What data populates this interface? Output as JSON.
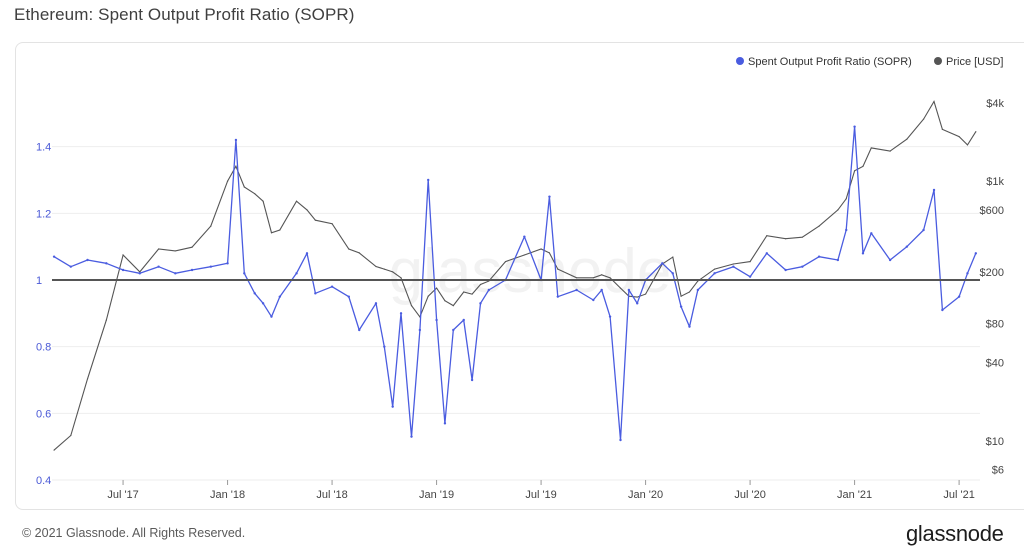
{
  "header": {
    "title": "Ethereum: Spent Output Profit Ratio (SOPR)"
  },
  "footer": {
    "copyright": "© 2021 Glassnode. All Rights Reserved.",
    "brand": "glassnode"
  },
  "watermark": "glassnode",
  "colors": {
    "sopr": "#4a5ce0",
    "price": "#555555",
    "baseline": "#555555",
    "grid": "#eeeeee"
  },
  "chart_data": {
    "type": "line",
    "title": "Ethereum: Spent Output Profit Ratio (SOPR)",
    "legend": [
      {
        "name": "Spent Output Profit Ratio (SOPR)",
        "color": "#4a5ce0"
      },
      {
        "name": "Price [USD]",
        "color": "#555555"
      }
    ],
    "x_ticks": [
      "Jul '17",
      "Jan '18",
      "Jul '18",
      "Jan '19",
      "Jul '19",
      "Jan '20",
      "Jul '20",
      "Jan '21",
      "Jul '21"
    ],
    "x_range": [
      "2017-03",
      "2021-07"
    ],
    "y_left": {
      "label": "SOPR",
      "ticks": [
        "1.4",
        "1.2",
        "1",
        "0.8",
        "0.6",
        "0.4"
      ],
      "tick_values": [
        1.4,
        1.2,
        1.0,
        0.8,
        0.6,
        0.4
      ],
      "range": [
        0.4,
        1.6
      ],
      "baseline": 1.0
    },
    "y_right": {
      "label": "Price [USD]",
      "scale": "log",
      "ticks": [
        "$4k",
        "$1k",
        "$600",
        "$200",
        "$80",
        "$40",
        "$10",
        "$6"
      ],
      "tick_values": [
        4000,
        1000,
        600,
        200,
        80,
        40,
        10,
        6
      ],
      "range": [
        5,
        6000
      ]
    },
    "series": [
      {
        "name": "Spent Output Profit Ratio (SOPR)",
        "axis": "left",
        "points": [
          [
            2017.17,
            1.07
          ],
          [
            2017.25,
            1.04
          ],
          [
            2017.33,
            1.06
          ],
          [
            2017.42,
            1.05
          ],
          [
            2017.5,
            1.03
          ],
          [
            2017.58,
            1.02
          ],
          [
            2017.67,
            1.04
          ],
          [
            2017.75,
            1.02
          ],
          [
            2017.83,
            1.03
          ],
          [
            2017.92,
            1.04
          ],
          [
            2018.0,
            1.05
          ],
          [
            2018.04,
            1.42
          ],
          [
            2018.08,
            1.02
          ],
          [
            2018.13,
            0.96
          ],
          [
            2018.17,
            0.93
          ],
          [
            2018.21,
            0.89
          ],
          [
            2018.25,
            0.95
          ],
          [
            2018.33,
            1.02
          ],
          [
            2018.38,
            1.08
          ],
          [
            2018.42,
            0.96
          ],
          [
            2018.5,
            0.98
          ],
          [
            2018.58,
            0.95
          ],
          [
            2018.63,
            0.85
          ],
          [
            2018.71,
            0.93
          ],
          [
            2018.75,
            0.8
          ],
          [
            2018.79,
            0.62
          ],
          [
            2018.83,
            0.9
          ],
          [
            2018.88,
            0.53
          ],
          [
            2018.92,
            0.85
          ],
          [
            2018.96,
            1.3
          ],
          [
            2019.0,
            0.88
          ],
          [
            2019.04,
            0.57
          ],
          [
            2019.08,
            0.85
          ],
          [
            2019.13,
            0.88
          ],
          [
            2019.17,
            0.7
          ],
          [
            2019.21,
            0.93
          ],
          [
            2019.25,
            0.97
          ],
          [
            2019.33,
            1.0
          ],
          [
            2019.42,
            1.13
          ],
          [
            2019.5,
            1.0
          ],
          [
            2019.54,
            1.25
          ],
          [
            2019.58,
            0.95
          ],
          [
            2019.67,
            0.97
          ],
          [
            2019.75,
            0.94
          ],
          [
            2019.79,
            0.97
          ],
          [
            2019.83,
            0.89
          ],
          [
            2019.88,
            0.52
          ],
          [
            2019.92,
            0.97
          ],
          [
            2019.96,
            0.93
          ],
          [
            2020.0,
            1.0
          ],
          [
            2020.08,
            1.05
          ],
          [
            2020.13,
            1.02
          ],
          [
            2020.17,
            0.92
          ],
          [
            2020.21,
            0.86
          ],
          [
            2020.25,
            0.97
          ],
          [
            2020.33,
            1.02
          ],
          [
            2020.42,
            1.04
          ],
          [
            2020.5,
            1.01
          ],
          [
            2020.58,
            1.08
          ],
          [
            2020.67,
            1.03
          ],
          [
            2020.75,
            1.04
          ],
          [
            2020.83,
            1.07
          ],
          [
            2020.92,
            1.06
          ],
          [
            2020.96,
            1.15
          ],
          [
            2021.0,
            1.46
          ],
          [
            2021.04,
            1.08
          ],
          [
            2021.08,
            1.14
          ],
          [
            2021.17,
            1.06
          ],
          [
            2021.25,
            1.1
          ],
          [
            2021.33,
            1.15
          ],
          [
            2021.38,
            1.27
          ],
          [
            2021.42,
            0.91
          ],
          [
            2021.5,
            0.95
          ],
          [
            2021.54,
            1.02
          ],
          [
            2021.58,
            1.08
          ]
        ]
      },
      {
        "name": "Price [USD]",
        "axis": "right",
        "points": [
          [
            2017.17,
            8.5
          ],
          [
            2017.25,
            11
          ],
          [
            2017.33,
            30
          ],
          [
            2017.42,
            85
          ],
          [
            2017.5,
            270
          ],
          [
            2017.58,
            200
          ],
          [
            2017.67,
            300
          ],
          [
            2017.75,
            290
          ],
          [
            2017.83,
            310
          ],
          [
            2017.92,
            450
          ],
          [
            2018.0,
            1000
          ],
          [
            2018.04,
            1300
          ],
          [
            2018.08,
            900
          ],
          [
            2018.13,
            800
          ],
          [
            2018.17,
            700
          ],
          [
            2018.21,
            400
          ],
          [
            2018.25,
            420
          ],
          [
            2018.33,
            700
          ],
          [
            2018.38,
            600
          ],
          [
            2018.42,
            500
          ],
          [
            2018.5,
            470
          ],
          [
            2018.58,
            300
          ],
          [
            2018.63,
            280
          ],
          [
            2018.71,
            220
          ],
          [
            2018.75,
            210
          ],
          [
            2018.79,
            200
          ],
          [
            2018.83,
            180
          ],
          [
            2018.88,
            110
          ],
          [
            2018.92,
            90
          ],
          [
            2018.96,
            130
          ],
          [
            2019.0,
            150
          ],
          [
            2019.04,
            120
          ],
          [
            2019.08,
            110
          ],
          [
            2019.13,
            140
          ],
          [
            2019.17,
            135
          ],
          [
            2019.21,
            160
          ],
          [
            2019.25,
            170
          ],
          [
            2019.33,
            240
          ],
          [
            2019.42,
            270
          ],
          [
            2019.5,
            300
          ],
          [
            2019.54,
            280
          ],
          [
            2019.58,
            210
          ],
          [
            2019.67,
            180
          ],
          [
            2019.75,
            180
          ],
          [
            2019.79,
            190
          ],
          [
            2019.83,
            180
          ],
          [
            2019.88,
            150
          ],
          [
            2019.92,
            130
          ],
          [
            2019.96,
            128
          ],
          [
            2020.0,
            135
          ],
          [
            2020.08,
            230
          ],
          [
            2020.13,
            260
          ],
          [
            2020.17,
            130
          ],
          [
            2020.21,
            140
          ],
          [
            2020.25,
            170
          ],
          [
            2020.33,
            210
          ],
          [
            2020.42,
            230
          ],
          [
            2020.5,
            240
          ],
          [
            2020.58,
            380
          ],
          [
            2020.67,
            360
          ],
          [
            2020.75,
            370
          ],
          [
            2020.83,
            450
          ],
          [
            2020.92,
            600
          ],
          [
            2020.96,
            730
          ],
          [
            2021.0,
            1200
          ],
          [
            2021.04,
            1300
          ],
          [
            2021.08,
            1800
          ],
          [
            2021.17,
            1700
          ],
          [
            2021.25,
            2100
          ],
          [
            2021.33,
            3000
          ],
          [
            2021.38,
            4100
          ],
          [
            2021.42,
            2500
          ],
          [
            2021.5,
            2200
          ],
          [
            2021.54,
            1900
          ],
          [
            2021.58,
            2400
          ]
        ]
      }
    ]
  }
}
